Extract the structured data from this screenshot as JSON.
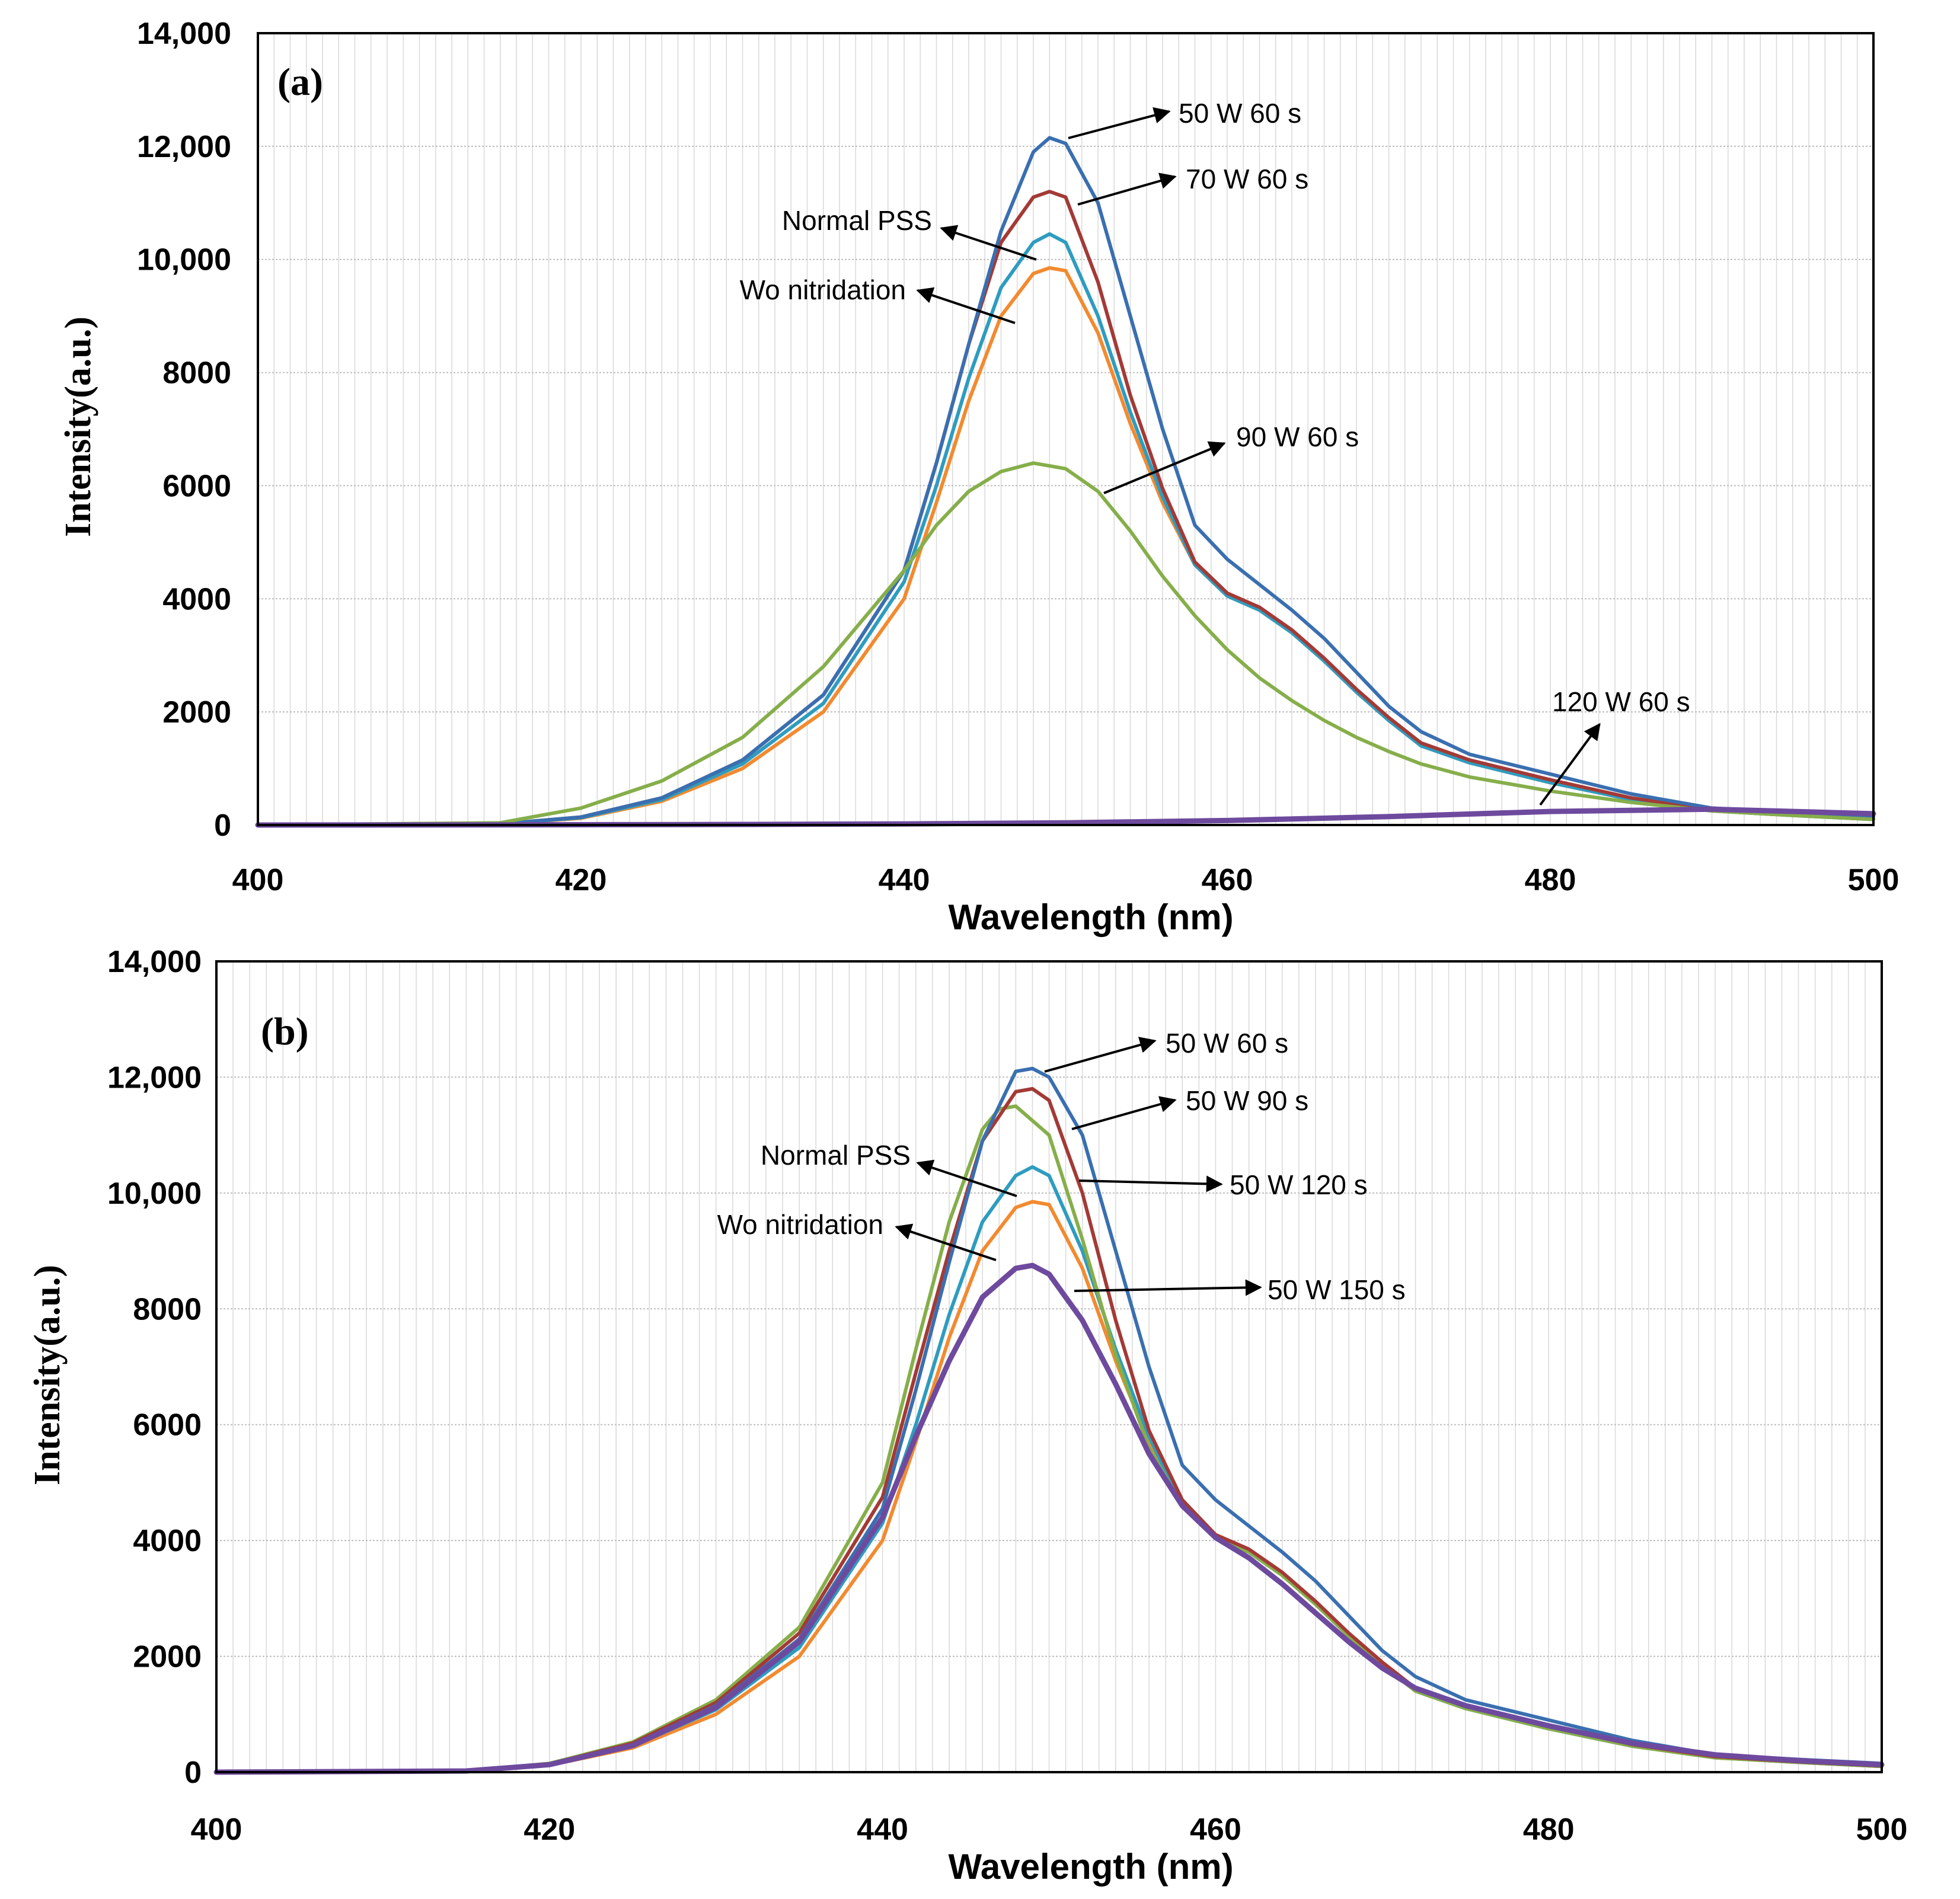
{
  "colors": {
    "blue": "#3A6FB0",
    "red": "#A33A36",
    "teal": "#2E9CBF",
    "orange": "#F28A30",
    "green": "#86AE4A",
    "purple": "#6E4A9E",
    "grid": "#D9D9D9",
    "frame": "#000000"
  },
  "chart_data": [
    {
      "type": "line",
      "panel_label": "(a)",
      "xlabel": "Wavelength (nm)",
      "ylabel": "Intensity(a.u.)",
      "xlim": [
        400,
        500
      ],
      "ylim": [
        0,
        14000
      ],
      "xticks": [
        400,
        420,
        440,
        460,
        480,
        500
      ],
      "xtick_labels": [
        "400",
        "420",
        "440",
        "460",
        "480",
        "500"
      ],
      "yticks": [
        0,
        2000,
        4000,
        6000,
        8000,
        10000,
        12000,
        14000
      ],
      "ytick_labels": [
        "0",
        "2000",
        "4000",
        "6000",
        "8000",
        "10,000",
        "12,000",
        "14,000"
      ],
      "grid": true,
      "series": [
        {
          "name": "Wo nitridation",
          "color": "orange",
          "x": [
            400,
            415,
            420,
            425,
            430,
            435,
            440,
            442,
            444,
            446,
            448,
            449,
            450,
            452,
            454,
            456,
            458,
            460,
            462,
            464,
            466,
            468,
            470,
            472,
            475,
            480,
            485,
            490,
            495,
            500
          ],
          "y": [
            0,
            20,
            120,
            420,
            1000,
            2000,
            4000,
            5700,
            7500,
            9000,
            9750,
            9850,
            9800,
            8700,
            7100,
            5700,
            4600,
            4050,
            3800,
            3400,
            2900,
            2350,
            1850,
            1400,
            1100,
            750,
            450,
            250,
            170,
            100
          ]
        },
        {
          "name": "Normal PSS",
          "color": "teal",
          "x": [
            400,
            415,
            420,
            425,
            430,
            435,
            440,
            442,
            444,
            446,
            448,
            449,
            450,
            452,
            454,
            456,
            458,
            460,
            462,
            464,
            466,
            468,
            470,
            472,
            475,
            480,
            485,
            490,
            495,
            500
          ],
          "y": [
            0,
            20,
            130,
            450,
            1080,
            2150,
            4300,
            6000,
            7900,
            9500,
            10300,
            10450,
            10300,
            9000,
            7300,
            5800,
            4600,
            4050,
            3800,
            3400,
            2900,
            2350,
            1850,
            1400,
            1100,
            750,
            450,
            250,
            170,
            100
          ]
        },
        {
          "name": "70 W 60 s",
          "color": "red",
          "x": [
            400,
            415,
            420,
            425,
            430,
            435,
            440,
            442,
            444,
            446,
            448,
            449,
            450,
            452,
            454,
            456,
            458,
            460,
            462,
            464,
            466,
            468,
            470,
            472,
            475,
            480,
            485,
            490,
            495,
            500
          ],
          "y": [
            0,
            20,
            140,
            480,
            1150,
            2300,
            4500,
            6400,
            8500,
            10300,
            11100,
            11200,
            11100,
            9600,
            7600,
            5950,
            4650,
            4100,
            3850,
            3450,
            2950,
            2400,
            1900,
            1450,
            1150,
            800,
            480,
            270,
            180,
            110
          ]
        },
        {
          "name": "50 W 60 s",
          "color": "blue",
          "x": [
            400,
            415,
            420,
            425,
            430,
            435,
            440,
            442,
            444,
            446,
            448,
            449,
            450,
            452,
            454,
            456,
            458,
            460,
            462,
            464,
            466,
            468,
            470,
            472,
            475,
            480,
            485,
            490,
            495,
            500
          ],
          "y": [
            0,
            20,
            140,
            480,
            1150,
            2300,
            4500,
            6400,
            8500,
            10500,
            11900,
            12150,
            12050,
            11000,
            9000,
            7000,
            5300,
            4700,
            4250,
            3800,
            3300,
            2700,
            2100,
            1650,
            1250,
            900,
            550,
            300,
            220,
            150
          ]
        },
        {
          "name": "90 W 60 s",
          "color": "green",
          "x": [
            400,
            415,
            420,
            425,
            430,
            435,
            440,
            442,
            444,
            446,
            448,
            450,
            452,
            454,
            456,
            458,
            460,
            462,
            464,
            466,
            468,
            470,
            472,
            475,
            480,
            485,
            490,
            495,
            500
          ],
          "y": [
            0,
            40,
            300,
            780,
            1550,
            2800,
            4500,
            5300,
            5900,
            6250,
            6400,
            6300,
            5900,
            5200,
            4400,
            3700,
            3100,
            2600,
            2200,
            1850,
            1550,
            1300,
            1080,
            850,
            600,
            400,
            250,
            170,
            100
          ]
        },
        {
          "name": "120 W 60 s",
          "color": "purple",
          "x": [
            400,
            420,
            430,
            440,
            450,
            460,
            470,
            480,
            490,
            500
          ],
          "y": [
            0,
            5,
            10,
            20,
            40,
            80,
            150,
            240,
            280,
            200
          ]
        }
      ],
      "annotations": [
        {
          "text": "50 W   60 s",
          "series": "50 W 60 s"
        },
        {
          "text": "70 W   60 s",
          "series": "70 W 60 s"
        },
        {
          "text": "Normal PSS",
          "series": "Normal PSS"
        },
        {
          "text": "Wo nitridation",
          "series": "Wo nitridation"
        },
        {
          "text": "90 W   60 s",
          "series": "90 W 60 s"
        },
        {
          "text": "120 W   60 s",
          "series": "120 W 60 s"
        }
      ]
    },
    {
      "type": "line",
      "panel_label": "(b)",
      "xlabel": "Wavelength (nm)",
      "ylabel": "Intensity(a.u.)",
      "xlim": [
        400,
        500
      ],
      "ylim": [
        0,
        14000
      ],
      "xticks": [
        400,
        420,
        440,
        460,
        480,
        500
      ],
      "xtick_labels": [
        "400",
        "420",
        "440",
        "460",
        "480",
        "500"
      ],
      "yticks": [
        0,
        2000,
        4000,
        6000,
        8000,
        10000,
        12000,
        14000
      ],
      "ytick_labels": [
        "0",
        "2000",
        "4000",
        "6000",
        "8000",
        "10,000",
        "12,000",
        "14,000"
      ],
      "grid": true,
      "series": [
        {
          "name": "Wo nitridation",
          "color": "orange",
          "x": [
            400,
            415,
            420,
            425,
            430,
            435,
            440,
            442,
            444,
            446,
            448,
            449,
            450,
            452,
            454,
            456,
            458,
            460,
            462,
            464,
            466,
            468,
            470,
            472,
            475,
            480,
            485,
            490,
            495,
            500
          ],
          "y": [
            0,
            20,
            120,
            420,
            1000,
            2000,
            4000,
            5700,
            7500,
            9000,
            9750,
            9850,
            9800,
            8700,
            7100,
            5700,
            4600,
            4050,
            3800,
            3400,
            2900,
            2350,
            1850,
            1400,
            1100,
            750,
            450,
            250,
            170,
            100
          ]
        },
        {
          "name": "Normal PSS",
          "color": "teal",
          "x": [
            400,
            415,
            420,
            425,
            430,
            435,
            440,
            442,
            444,
            446,
            448,
            449,
            450,
            452,
            454,
            456,
            458,
            460,
            462,
            464,
            466,
            468,
            470,
            472,
            475,
            480,
            485,
            490,
            495,
            500
          ],
          "y": [
            0,
            20,
            130,
            450,
            1080,
            2150,
            4300,
            6000,
            7900,
            9500,
            10300,
            10450,
            10300,
            9000,
            7300,
            5800,
            4600,
            4050,
            3800,
            3400,
            2900,
            2350,
            1850,
            1400,
            1100,
            750,
            450,
            250,
            170,
            100
          ]
        },
        {
          "name": "50 W 120 s",
          "color": "green",
          "x": [
            400,
            415,
            420,
            425,
            430,
            435,
            440,
            442,
            444,
            446,
            447,
            448,
            450,
            452,
            454,
            456,
            458,
            460,
            462,
            464,
            466,
            468,
            470,
            472,
            475,
            480,
            485,
            490,
            495,
            500
          ],
          "y": [
            0,
            20,
            150,
            520,
            1250,
            2500,
            5000,
            7300,
            9500,
            11100,
            11450,
            11500,
            11000,
            9200,
            7200,
            5600,
            4600,
            4050,
            3800,
            3400,
            2900,
            2350,
            1850,
            1400,
            1100,
            750,
            450,
            250,
            170,
            100
          ]
        },
        {
          "name": "50 W 90 s",
          "color": "red",
          "x": [
            400,
            415,
            420,
            425,
            430,
            435,
            440,
            442,
            444,
            446,
            448,
            449,
            450,
            452,
            454,
            456,
            458,
            460,
            462,
            464,
            466,
            468,
            470,
            472,
            475,
            480,
            485,
            490,
            495,
            500
          ],
          "y": [
            0,
            20,
            140,
            500,
            1200,
            2400,
            4750,
            6900,
            9000,
            10900,
            11750,
            11800,
            11600,
            10000,
            7800,
            5900,
            4700,
            4100,
            3850,
            3450,
            2950,
            2400,
            1900,
            1450,
            1150,
            800,
            480,
            270,
            180,
            110
          ]
        },
        {
          "name": "50 W 60 s",
          "color": "blue",
          "x": [
            400,
            415,
            420,
            425,
            430,
            435,
            440,
            442,
            444,
            446,
            448,
            449,
            450,
            452,
            454,
            456,
            458,
            460,
            462,
            464,
            466,
            468,
            470,
            472,
            475,
            480,
            485,
            490,
            495,
            500
          ],
          "y": [
            0,
            20,
            130,
            470,
            1150,
            2300,
            4550,
            6600,
            8800,
            10900,
            12100,
            12150,
            12000,
            11000,
            9000,
            7000,
            5300,
            4700,
            4250,
            3800,
            3300,
            2700,
            2100,
            1650,
            1250,
            900,
            550,
            300,
            220,
            150
          ]
        },
        {
          "name": "50 W 150 s",
          "color": "purple",
          "x": [
            400,
            415,
            420,
            425,
            430,
            435,
            440,
            442,
            444,
            446,
            448,
            449,
            450,
            452,
            454,
            456,
            458,
            460,
            462,
            464,
            466,
            468,
            470,
            472,
            475,
            480,
            485,
            490,
            495,
            500
          ],
          "y": [
            0,
            20,
            130,
            460,
            1120,
            2250,
            4400,
            5800,
            7100,
            8200,
            8700,
            8750,
            8600,
            7800,
            6700,
            5500,
            4600,
            4050,
            3700,
            3250,
            2750,
            2250,
            1800,
            1450,
            1150,
            800,
            500,
            300,
            200,
            130
          ]
        }
      ],
      "annotations": [
        {
          "text": "50 W   60 s",
          "series": "50 W 60 s"
        },
        {
          "text": "50 W   90 s",
          "series": "50 W 90 s"
        },
        {
          "text": "Normal PSS",
          "series": "Normal PSS"
        },
        {
          "text": "50 W   120 s",
          "series": "50 W 120 s"
        },
        {
          "text": "Wo nitridation",
          "series": "Wo nitridation"
        },
        {
          "text": "50 W   150 s",
          "series": "50 W 150 s"
        }
      ]
    }
  ]
}
